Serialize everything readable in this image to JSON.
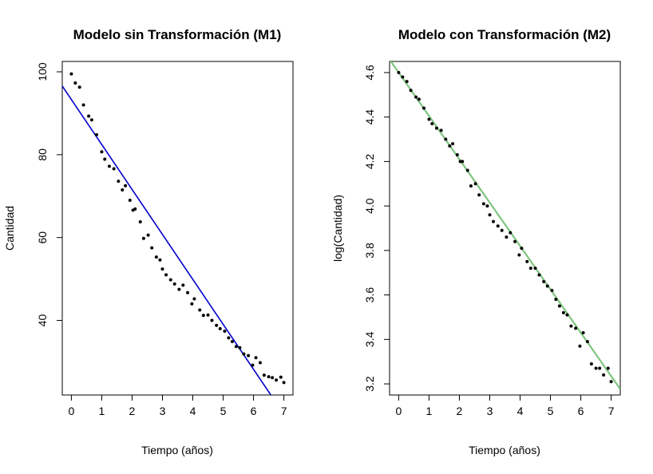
{
  "chart_data": [
    {
      "type": "scatter",
      "title": "Modelo sin Transformación (M1)",
      "xlabel": "Tiempo (años)",
      "ylabel": "Cantidad",
      "xlim": [
        -0.3,
        7.3
      ],
      "ylim": [
        22,
        102.5
      ],
      "xticks": [
        "0",
        "1",
        "2",
        "3",
        "4",
        "5",
        "6",
        "7"
      ],
      "yticks": [
        "40",
        "60",
        "80",
        "100"
      ],
      "points_color": "#000000",
      "fit_line": {
        "color": "#0000cc",
        "intercept": 93.3,
        "slope": -10.85,
        "x_range": [
          -0.3,
          6.65
        ]
      },
      "x": [
        0.0,
        0.13,
        0.27,
        0.4,
        0.57,
        0.67,
        0.83,
        1.0,
        1.1,
        1.25,
        1.4,
        1.55,
        1.68,
        1.78,
        1.93,
        2.03,
        2.1,
        2.27,
        2.38,
        2.53,
        2.65,
        2.8,
        2.92,
        3.0,
        3.12,
        3.27,
        3.4,
        3.55,
        3.68,
        3.83,
        3.97,
        4.05,
        4.23,
        4.35,
        4.5,
        4.63,
        4.78,
        4.9,
        5.05,
        5.18,
        5.3,
        5.43,
        5.55,
        5.68,
        5.83,
        5.97,
        6.08,
        6.22,
        6.35,
        6.5,
        6.62,
        6.75,
        6.9,
        7.0
      ],
      "y": [
        99.5,
        97.3,
        96.3,
        92.0,
        89.3,
        88.4,
        84.8,
        80.7,
        78.9,
        77.2,
        76.6,
        73.6,
        71.5,
        72.5,
        69.0,
        66.6,
        66.9,
        63.8,
        59.8,
        60.6,
        57.5,
        55.3,
        54.6,
        52.4,
        51.0,
        49.8,
        48.8,
        47.5,
        48.5,
        46.7,
        44.0,
        45.2,
        42.5,
        41.2,
        41.3,
        40.0,
        38.8,
        38.0,
        37.4,
        35.8,
        34.9,
        33.7,
        33.4,
        31.9,
        31.5,
        29.2,
        31.0,
        29.8,
        26.8,
        26.4,
        26.2,
        25.6,
        26.3,
        25.0
      ]
    },
    {
      "type": "scatter",
      "title": "Modelo con Transformación (M2)",
      "xlabel": "Tiempo (años)",
      "ylabel": "log(Cantidad)",
      "xlim": [
        -0.3,
        7.3
      ],
      "ylim": [
        3.15,
        4.65
      ],
      "xticks": [
        "0",
        "1",
        "2",
        "3",
        "4",
        "5",
        "6",
        "7"
      ],
      "yticks": [
        "3.2",
        "3.4",
        "3.6",
        "3.8",
        "4.0",
        "4.2",
        "4.4",
        "4.6"
      ],
      "points_color": "#000000",
      "fit_line": {
        "color": "#7fc47f",
        "intercept": 4.6,
        "slope": -0.195,
        "x_range": [
          -0.3,
          7.3
        ]
      },
      "x": [
        0.0,
        0.13,
        0.27,
        0.4,
        0.57,
        0.67,
        0.83,
        1.0,
        1.1,
        1.25,
        1.4,
        1.55,
        1.68,
        1.78,
        1.93,
        2.03,
        2.1,
        2.27,
        2.38,
        2.53,
        2.65,
        2.8,
        2.92,
        3.0,
        3.12,
        3.27,
        3.4,
        3.55,
        3.68,
        3.83,
        3.97,
        4.05,
        4.23,
        4.35,
        4.5,
        4.63,
        4.78,
        4.9,
        5.05,
        5.18,
        5.3,
        5.43,
        5.55,
        5.68,
        5.83,
        5.97,
        6.08,
        6.22,
        6.35,
        6.5,
        6.62,
        6.75,
        6.9,
        7.0
      ],
      "y": [
        4.6,
        4.58,
        4.56,
        4.52,
        4.49,
        4.48,
        4.44,
        4.39,
        4.37,
        4.35,
        4.34,
        4.3,
        4.27,
        4.28,
        4.23,
        4.2,
        4.2,
        4.16,
        4.09,
        4.1,
        4.05,
        4.01,
        4.0,
        3.96,
        3.93,
        3.91,
        3.89,
        3.86,
        3.88,
        3.84,
        3.78,
        3.81,
        3.75,
        3.72,
        3.72,
        3.69,
        3.66,
        3.64,
        3.62,
        3.58,
        3.55,
        3.52,
        3.51,
        3.46,
        3.45,
        3.37,
        3.43,
        3.39,
        3.29,
        3.27,
        3.27,
        3.24,
        3.27,
        3.21
      ]
    }
  ]
}
